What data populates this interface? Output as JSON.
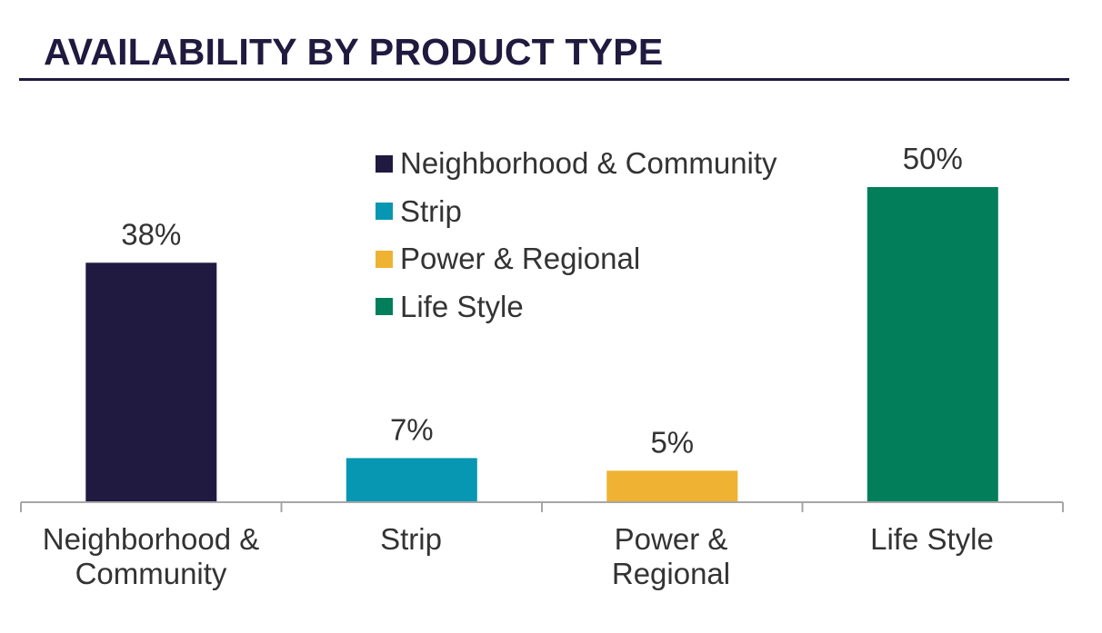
{
  "title": "AVAILABILITY BY PRODUCT TYPE",
  "colors": {
    "title": "#1f1a3e",
    "rule": "#1f1a3e",
    "axis": "#a6a6a6",
    "text": "#333333"
  },
  "legend": {
    "items": [
      {
        "label": "Neighborhood & Community",
        "color": "#201a40"
      },
      {
        "label": "Strip",
        "color": "#0797b2"
      },
      {
        "label": "Power & Regional",
        "color": "#f0b232"
      },
      {
        "label": "Life Style",
        "color": "#027e5b"
      }
    ]
  },
  "chart_data": {
    "type": "bar",
    "title": "AVAILABILITY BY PRODUCT TYPE",
    "categories": [
      "Neighborhood & Community",
      "Strip",
      "Power & Regional",
      "Life Style"
    ],
    "values": [
      38,
      7,
      5,
      50
    ],
    "data_labels": [
      "38%",
      "7%",
      "5%",
      "50%"
    ],
    "colors": [
      "#201a40",
      "#0797b2",
      "#f0b232",
      "#027e5b"
    ],
    "ylim": [
      0,
      50
    ],
    "xlabel": "",
    "ylabel": "",
    "grid": false,
    "legend_position": "top-center"
  }
}
